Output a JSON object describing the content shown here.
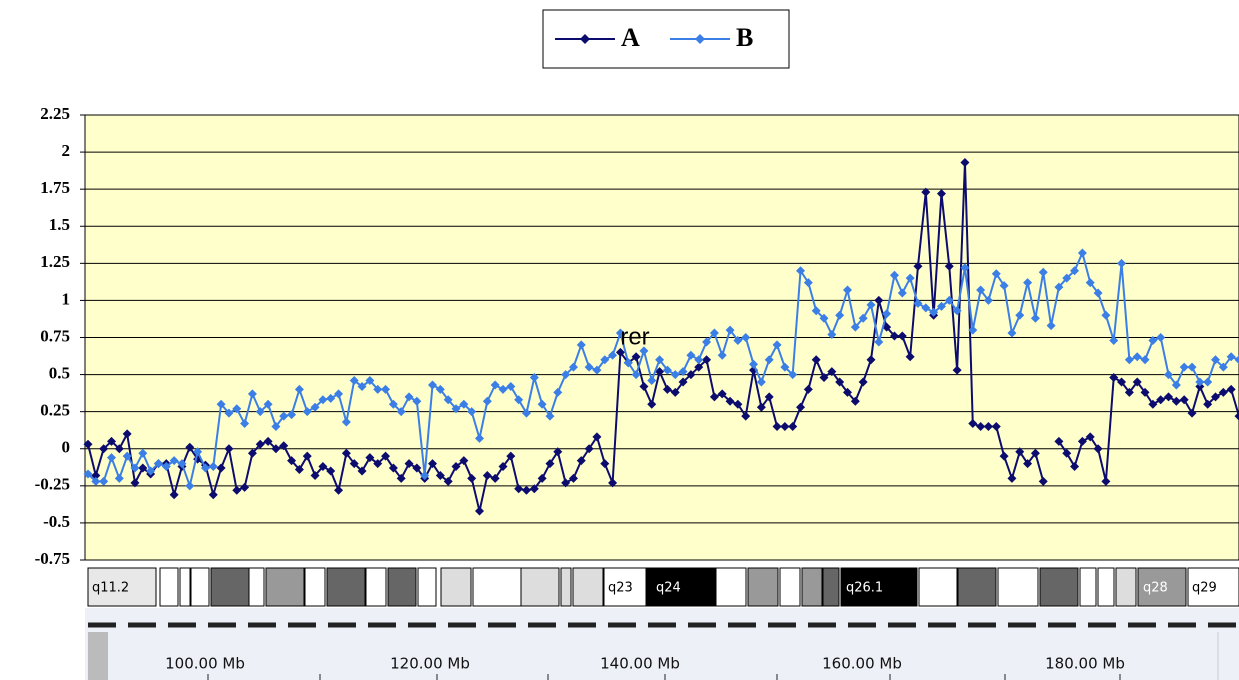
{
  "chart_data": {
    "type": "line",
    "series": [
      {
        "name": "A",
        "color": "#0c0c6e",
        "values": [
          0.03,
          -0.18,
          0,
          0.05,
          0,
          0.1,
          -0.23,
          -0.13,
          -0.17,
          -0.1,
          -0.1,
          -0.31,
          -0.12,
          0.01,
          -0.07,
          -0.11,
          -0.31,
          -0.13,
          0,
          -0.28,
          -0.26,
          -0.03,
          0.03,
          0.05,
          0,
          0.02,
          -0.08,
          -0.14,
          -0.05,
          -0.18,
          -0.12,
          -0.15,
          -0.28,
          -0.03,
          -0.1,
          -0.15,
          -0.06,
          -0.1,
          -0.05,
          -0.13,
          -0.2,
          -0.1,
          -0.13,
          -0.2,
          -0.1,
          -0.18,
          -0.22,
          -0.12,
          -0.08,
          -0.2,
          -0.42,
          -0.18,
          -0.2,
          -0.12,
          -0.05,
          -0.27,
          -0.28,
          -0.27,
          -0.2,
          -0.1,
          -0.02,
          -0.23,
          -0.2,
          -0.08,
          0,
          0.08,
          -0.1,
          -0.23,
          0.65,
          0.58,
          0.62,
          0.42,
          0.3,
          0.52,
          0.4,
          0.38,
          0.45,
          0.5,
          0.55,
          0.6,
          0.35,
          0.37,
          0.32,
          0.3,
          0.22,
          0.53,
          0.28,
          0.35,
          0.15,
          0.15,
          0.15,
          0.28,
          0.4,
          0.6,
          0.48,
          0.52,
          0.45,
          0.38,
          0.32,
          0.45,
          0.6,
          1.0,
          0.82,
          0.76,
          0.76,
          0.62,
          1.23,
          1.73,
          0.9,
          1.72,
          1.23,
          0.53,
          1.93,
          0.17,
          0.15,
          0.15,
          0.15,
          -0.05,
          -0.2,
          -0.02,
          -0.1,
          -0.03,
          -0.22,
          null,
          0.05,
          -0.03,
          -0.12,
          0.05,
          0.08,
          0,
          -0.22,
          0.48,
          0.45,
          0.38,
          0.45,
          0.38,
          0.3,
          0.33,
          0.35,
          0.32,
          0.33,
          0.24,
          0.42,
          0.3,
          0.35,
          0.38,
          0.4,
          0.22
        ]
      },
      {
        "name": "B",
        "color": "#3b7fe6",
        "values": [
          -0.17,
          -0.22,
          -0.22,
          -0.06,
          -0.2,
          -0.05,
          -0.13,
          -0.03,
          -0.15,
          -0.1,
          -0.12,
          -0.08,
          -0.1,
          -0.25,
          -0.02,
          -0.13,
          -0.12,
          0.3,
          0.24,
          0.27,
          0.17,
          0.37,
          0.25,
          0.3,
          0.15,
          0.22,
          0.23,
          0.4,
          0.25,
          0.28,
          0.33,
          0.34,
          0.37,
          0.18,
          0.46,
          0.42,
          0.46,
          0.4,
          0.4,
          0.3,
          0.25,
          0.35,
          0.32,
          -0.18,
          0.43,
          0.4,
          0.33,
          0.27,
          0.3,
          0.25,
          0.07,
          0.32,
          0.43,
          0.4,
          0.42,
          0.33,
          0.24,
          0.48,
          0.3,
          0.22,
          0.38,
          0.5,
          0.55,
          0.7,
          0.55,
          0.53,
          0.6,
          0.63,
          0.78,
          0.58,
          0.5,
          0.66,
          0.46,
          0.6,
          0.53,
          0.5,
          0.52,
          0.63,
          0.6,
          0.72,
          0.78,
          0.63,
          0.8,
          0.73,
          0.75,
          0.57,
          0.45,
          0.6,
          0.7,
          0.55,
          0.5,
          1.2,
          1.12,
          0.93,
          0.88,
          0.77,
          0.9,
          1.07,
          0.82,
          0.88,
          0.97,
          0.72,
          0.91,
          1.17,
          1.05,
          1.15,
          0.98,
          0.95,
          0.92,
          0.96,
          1.0,
          0.93,
          1.22,
          0.8,
          1.07,
          1.0,
          1.18,
          1.1,
          0.78,
          0.9,
          1.12,
          0.88,
          1.19,
          0.83,
          1.09,
          1.15,
          1.2,
          1.32,
          1.12,
          1.05,
          0.9,
          0.73,
          1.25,
          0.6,
          0.62,
          0.6,
          0.73,
          0.75,
          0.5,
          0.43,
          0.55,
          0.55,
          0.45,
          0.45,
          0.6,
          0.55,
          0.62,
          0.6
        ]
      }
    ],
    "ylim": [
      -0.75,
      2.25
    ],
    "yticks": [
      -0.75,
      -0.5,
      -0.25,
      0,
      0.25,
      0.5,
      0.75,
      1,
      1.25,
      1.5,
      1.75,
      2,
      2.25
    ],
    "grid": true,
    "legend": "top",
    "annotation": "rer"
  },
  "ideogram": {
    "bands": [
      "q11.2",
      "q23",
      "q24",
      "q26.1",
      "q28",
      "q29"
    ],
    "scale": [
      "100.00 Mb",
      "120.00 Mb",
      "140.00 Mb",
      "160.00 Mb",
      "180.00 Mb"
    ]
  }
}
